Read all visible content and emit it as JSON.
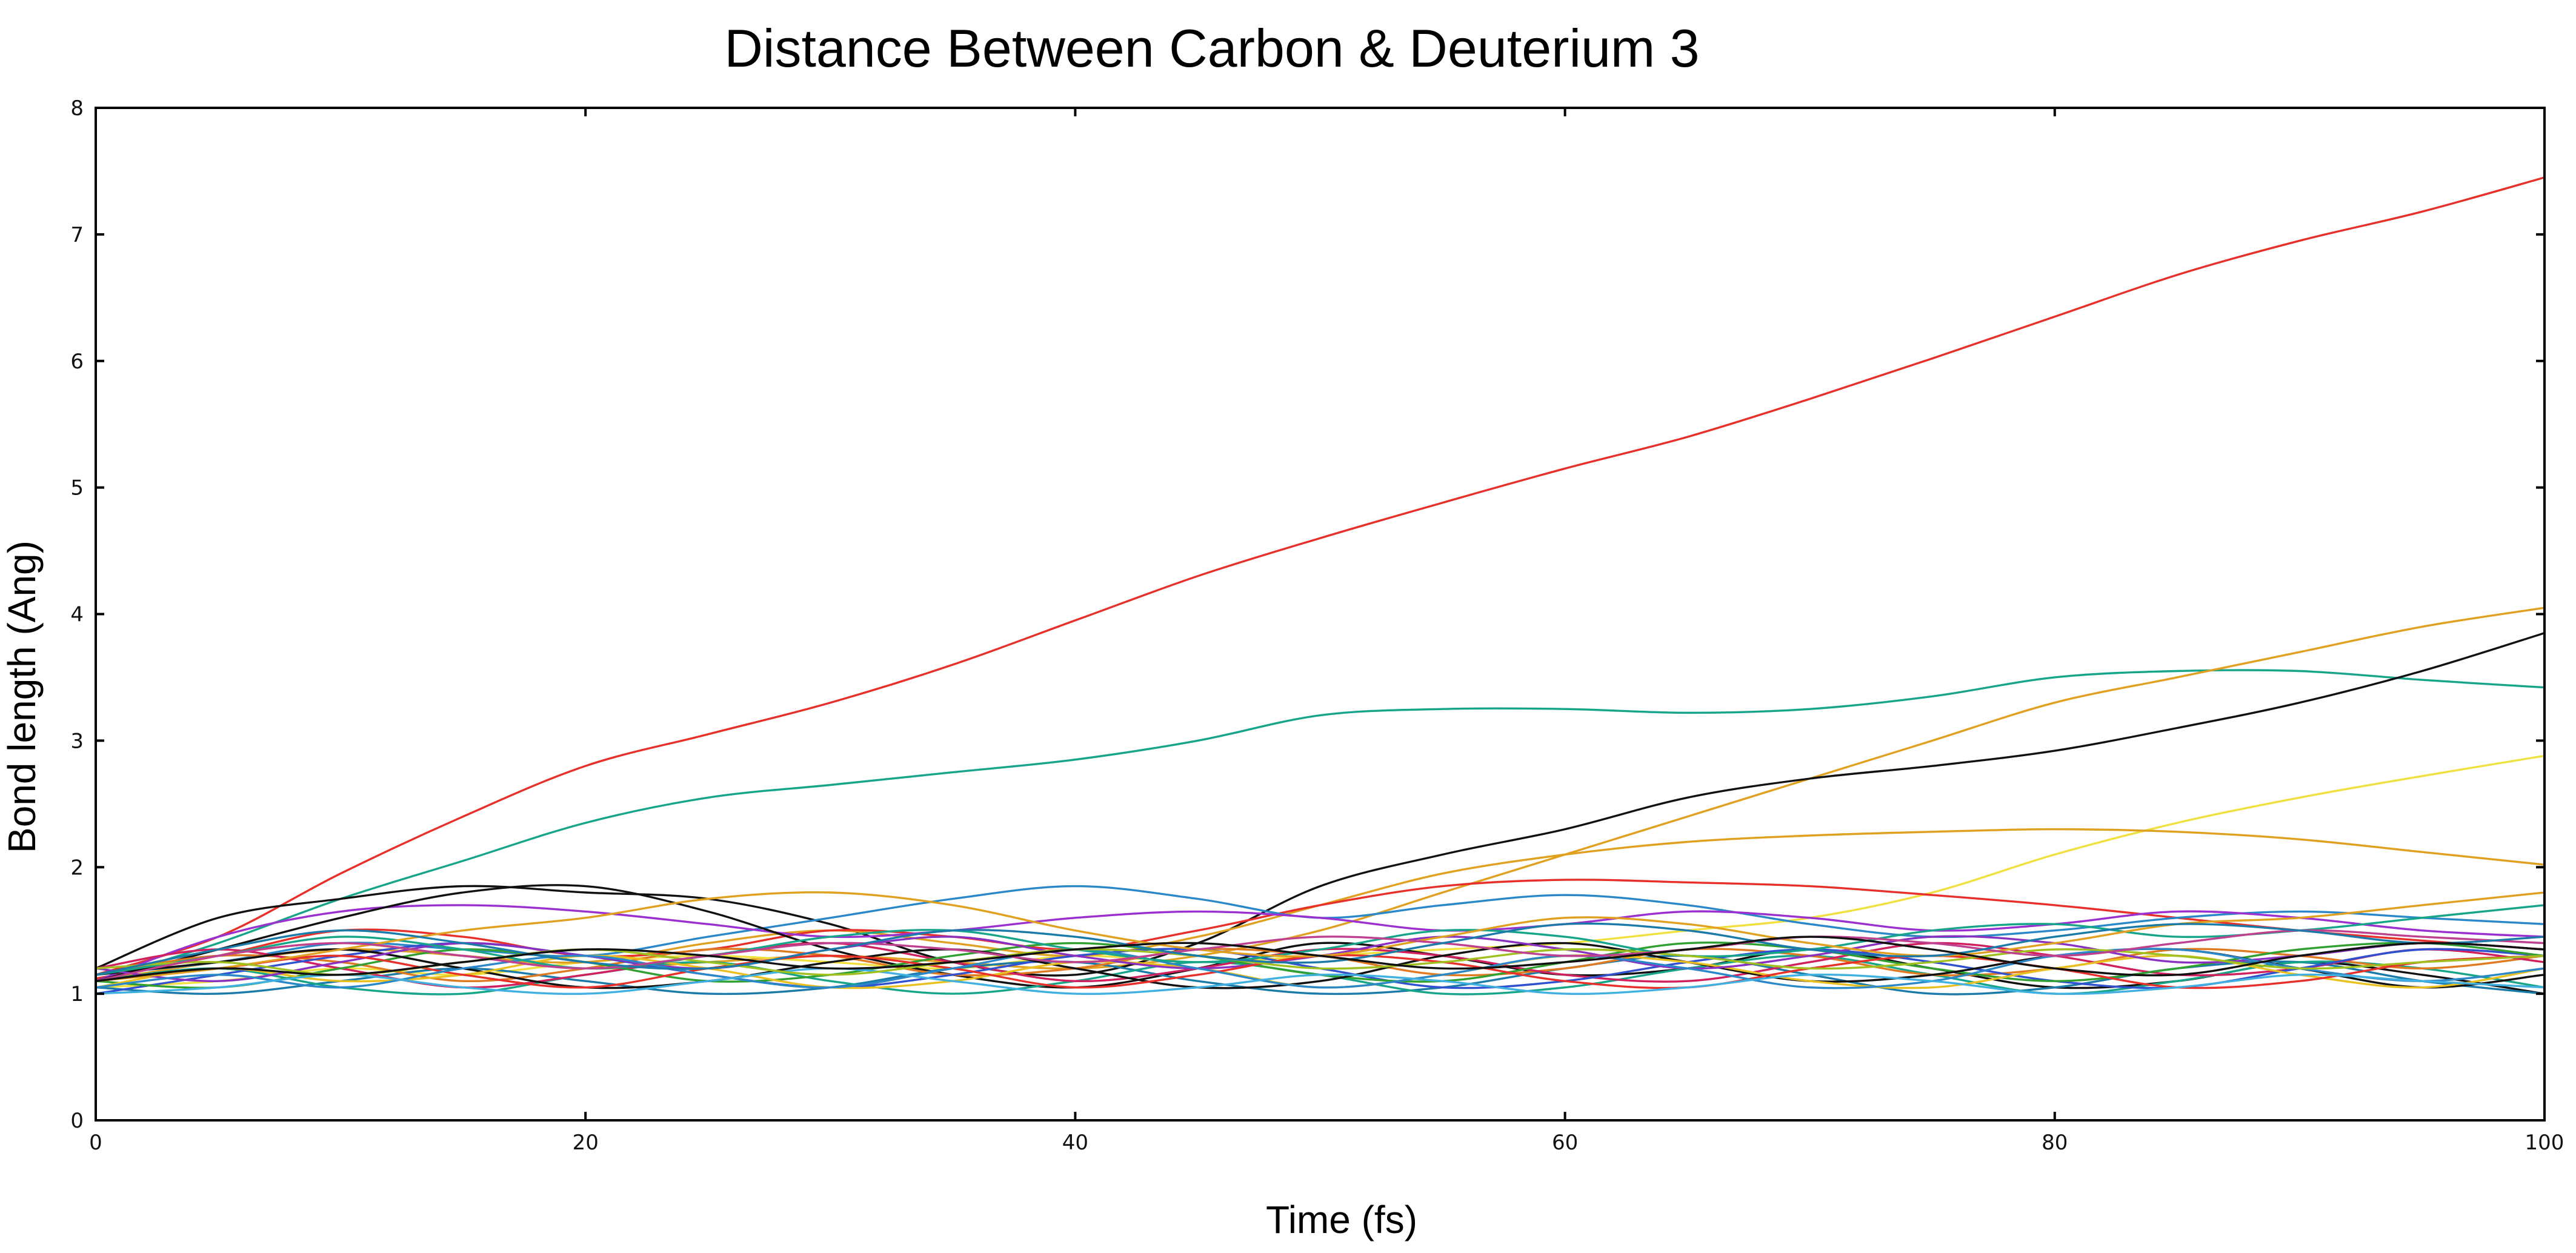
{
  "chart_data": {
    "type": "line",
    "title": "Distance Between Carbon & Deuterium 3",
    "xlabel": "Time (fs)",
    "ylabel": "Bond length (Ang)",
    "xlim": [
      0,
      100
    ],
    "ylim": [
      0,
      8
    ],
    "xticks": [
      "0",
      "20",
      "40",
      "60",
      "80",
      "100"
    ],
    "yticks": [
      "0",
      "1",
      "2",
      "3",
      "4",
      "5",
      "6",
      "7",
      "8"
    ],
    "grid": false,
    "legend": "none",
    "x": [
      0,
      5,
      10,
      15,
      20,
      25,
      30,
      35,
      40,
      45,
      50,
      55,
      60,
      65,
      70,
      75,
      80,
      85,
      90,
      95,
      100
    ],
    "series": [
      {
        "color": "#e8302a",
        "values": [
          1.15,
          1.45,
          1.95,
          2.4,
          2.8,
          3.05,
          3.3,
          3.6,
          3.95,
          4.3,
          4.6,
          4.88,
          5.15,
          5.4,
          5.7,
          6.02,
          6.35,
          6.68,
          6.95,
          7.18,
          7.45
        ]
      },
      {
        "color": "#17a58a",
        "values": [
          1.1,
          1.4,
          1.75,
          2.05,
          2.35,
          2.55,
          2.65,
          2.75,
          2.85,
          3.0,
          3.2,
          3.25,
          3.25,
          3.22,
          3.25,
          3.35,
          3.5,
          3.55,
          3.55,
          3.48,
          3.42
        ]
      },
      {
        "color": "#e0a020",
        "values": [
          1.1,
          1.25,
          1.35,
          1.3,
          1.2,
          1.25,
          1.3,
          1.25,
          1.2,
          1.3,
          1.5,
          1.8,
          2.1,
          2.4,
          2.7,
          3.0,
          3.3,
          3.5,
          3.7,
          3.9,
          4.05
        ]
      },
      {
        "color": "#111111",
        "values": [
          1.2,
          1.6,
          1.75,
          1.85,
          1.8,
          1.75,
          1.55,
          1.25,
          1.15,
          1.4,
          1.85,
          2.1,
          2.3,
          2.55,
          2.7,
          2.8,
          2.92,
          3.1,
          3.3,
          3.55,
          3.85
        ]
      },
      {
        "color": "#f0e040",
        "values": [
          1.05,
          1.1,
          1.2,
          1.15,
          1.25,
          1.3,
          1.25,
          1.2,
          1.3,
          1.25,
          1.3,
          1.35,
          1.4,
          1.5,
          1.6,
          1.8,
          2.1,
          2.35,
          2.55,
          2.72,
          2.88
        ]
      },
      {
        "color": "#e0a020",
        "values": [
          1.1,
          1.3,
          1.4,
          1.3,
          1.25,
          1.4,
          1.5,
          1.4,
          1.3,
          1.45,
          1.7,
          1.95,
          2.1,
          2.2,
          2.25,
          2.28,
          2.3,
          2.28,
          2.22,
          2.12,
          2.02
        ]
      },
      {
        "color": "#e8302a",
        "values": [
          1.12,
          1.3,
          1.5,
          1.45,
          1.3,
          1.35,
          1.5,
          1.45,
          1.35,
          1.5,
          1.7,
          1.85,
          1.9,
          1.88,
          1.85,
          1.78,
          1.7,
          1.6,
          1.5,
          1.42,
          1.35
        ]
      },
      {
        "color": "#2a88c8",
        "values": [
          1.15,
          1.25,
          1.4,
          1.35,
          1.3,
          1.45,
          1.6,
          1.75,
          1.85,
          1.75,
          1.6,
          1.7,
          1.78,
          1.7,
          1.55,
          1.45,
          1.5,
          1.6,
          1.65,
          1.6,
          1.55
        ]
      },
      {
        "color": "#9b30d0",
        "values": [
          1.1,
          1.45,
          1.65,
          1.7,
          1.65,
          1.55,
          1.45,
          1.5,
          1.6,
          1.65,
          1.6,
          1.5,
          1.55,
          1.65,
          1.6,
          1.5,
          1.55,
          1.65,
          1.6,
          1.5,
          1.45
        ]
      },
      {
        "color": "#111111",
        "values": [
          1.1,
          1.35,
          1.6,
          1.8,
          1.85,
          1.65,
          1.35,
          1.15,
          1.05,
          1.2,
          1.4,
          1.3,
          1.15,
          1.2,
          1.35,
          1.2,
          1.05,
          1.1,
          1.25,
          1.15,
          1.0
        ]
      },
      {
        "color": "#1a7aa8",
        "values": [
          1.05,
          1.0,
          1.1,
          1.2,
          1.1,
          1.0,
          1.05,
          1.2,
          1.25,
          1.1,
          1.0,
          1.05,
          1.2,
          1.3,
          1.15,
          1.0,
          1.05,
          1.2,
          1.25,
          1.1,
          1.0
        ]
      },
      {
        "color": "#17a58a",
        "values": [
          1.1,
          1.2,
          1.05,
          1.0,
          1.15,
          1.25,
          1.1,
          1.0,
          1.1,
          1.25,
          1.15,
          1.0,
          1.05,
          1.2,
          1.3,
          1.15,
          1.0,
          1.1,
          1.25,
          1.2,
          1.05
        ]
      },
      {
        "color": "#e07a20",
        "values": [
          1.15,
          1.3,
          1.25,
          1.1,
          1.2,
          1.35,
          1.3,
          1.15,
          1.2,
          1.35,
          1.3,
          1.15,
          1.2,
          1.35,
          1.3,
          1.15,
          1.2,
          1.35,
          1.3,
          1.2,
          1.3
        ]
      },
      {
        "color": "#d02060",
        "values": [
          1.2,
          1.35,
          1.2,
          1.05,
          1.15,
          1.3,
          1.4,
          1.25,
          1.1,
          1.2,
          1.35,
          1.3,
          1.15,
          1.1,
          1.25,
          1.4,
          1.3,
          1.15,
          1.2,
          1.35,
          1.25
        ]
      },
      {
        "color": "#3050d0",
        "values": [
          1.0,
          1.15,
          1.3,
          1.4,
          1.3,
          1.15,
          1.05,
          1.15,
          1.3,
          1.35,
          1.2,
          1.05,
          1.1,
          1.25,
          1.35,
          1.25,
          1.1,
          1.05,
          1.2,
          1.35,
          1.3
        ]
      },
      {
        "color": "#30a030",
        "values": [
          1.1,
          1.05,
          1.2,
          1.35,
          1.25,
          1.1,
          1.15,
          1.3,
          1.4,
          1.3,
          1.15,
          1.1,
          1.25,
          1.4,
          1.35,
          1.2,
          1.1,
          1.2,
          1.35,
          1.4,
          1.3
        ]
      },
      {
        "color": "#111111",
        "values": [
          1.15,
          1.25,
          1.35,
          1.2,
          1.05,
          1.1,
          1.25,
          1.35,
          1.2,
          1.05,
          1.1,
          1.3,
          1.4,
          1.25,
          1.1,
          1.15,
          1.3,
          1.35,
          1.2,
          1.05,
          1.15
        ]
      },
      {
        "color": "#e8c020",
        "values": [
          1.05,
          1.2,
          1.1,
          1.15,
          1.3,
          1.2,
          1.05,
          1.1,
          1.25,
          1.2,
          1.05,
          1.15,
          1.3,
          1.25,
          1.1,
          1.05,
          1.2,
          1.3,
          1.15,
          1.05,
          1.2
        ]
      },
      {
        "color": "#8a30c0",
        "values": [
          1.2,
          1.1,
          1.25,
          1.4,
          1.3,
          1.2,
          1.35,
          1.45,
          1.3,
          1.2,
          1.3,
          1.45,
          1.35,
          1.2,
          1.3,
          1.45,
          1.4,
          1.25,
          1.3,
          1.4,
          1.35
        ]
      },
      {
        "color": "#e8302a",
        "values": [
          1.1,
          1.2,
          1.3,
          1.15,
          1.05,
          1.2,
          1.3,
          1.2,
          1.05,
          1.15,
          1.3,
          1.25,
          1.1,
          1.05,
          1.2,
          1.3,
          1.2,
          1.05,
          1.1,
          1.25,
          1.3
        ]
      },
      {
        "color": "#2a88c8",
        "values": [
          1.05,
          1.15,
          1.05,
          1.2,
          1.3,
          1.15,
          1.05,
          1.2,
          1.35,
          1.2,
          1.05,
          1.15,
          1.3,
          1.2,
          1.05,
          1.1,
          1.3,
          1.35,
          1.2,
          1.1,
          1.2
        ]
      },
      {
        "color": "#17a58a",
        "values": [
          1.15,
          1.3,
          1.45,
          1.35,
          1.2,
          1.3,
          1.45,
          1.5,
          1.35,
          1.25,
          1.35,
          1.5,
          1.45,
          1.3,
          1.35,
          1.5,
          1.55,
          1.45,
          1.5,
          1.6,
          1.7
        ]
      },
      {
        "color": "#e0a020",
        "values": [
          1.1,
          1.2,
          1.35,
          1.5,
          1.6,
          1.75,
          1.8,
          1.7,
          1.5,
          1.35,
          1.3,
          1.45,
          1.6,
          1.55,
          1.4,
          1.3,
          1.4,
          1.55,
          1.6,
          1.7,
          1.8
        ]
      },
      {
        "color": "#40b0e0",
        "values": [
          1.0,
          1.05,
          1.15,
          1.05,
          1.0,
          1.1,
          1.2,
          1.1,
          1.0,
          1.05,
          1.15,
          1.1,
          1.0,
          1.05,
          1.15,
          1.1,
          1.0,
          1.05,
          1.15,
          1.1,
          1.05
        ]
      },
      {
        "color": "#a0c020",
        "values": [
          1.2,
          1.25,
          1.15,
          1.25,
          1.35,
          1.25,
          1.15,
          1.25,
          1.35,
          1.3,
          1.2,
          1.25,
          1.35,
          1.3,
          1.2,
          1.25,
          1.35,
          1.3,
          1.2,
          1.25,
          1.3
        ]
      },
      {
        "color": "#c04090",
        "values": [
          1.1,
          1.3,
          1.4,
          1.3,
          1.2,
          1.3,
          1.4,
          1.35,
          1.25,
          1.35,
          1.45,
          1.4,
          1.3,
          1.35,
          1.45,
          1.4,
          1.3,
          1.4,
          1.5,
          1.45,
          1.4
        ]
      },
      {
        "color": "#1a7aa8",
        "values": [
          1.15,
          1.35,
          1.5,
          1.4,
          1.25,
          1.2,
          1.35,
          1.5,
          1.45,
          1.3,
          1.25,
          1.4,
          1.55,
          1.5,
          1.35,
          1.3,
          1.45,
          1.55,
          1.5,
          1.4,
          1.45
        ]
      },
      {
        "color": "#111111",
        "values": [
          1.1,
          1.2,
          1.15,
          1.25,
          1.35,
          1.3,
          1.2,
          1.25,
          1.35,
          1.4,
          1.3,
          1.2,
          1.25,
          1.35,
          1.45,
          1.35,
          1.2,
          1.15,
          1.3,
          1.4,
          1.35
        ]
      }
    ]
  }
}
